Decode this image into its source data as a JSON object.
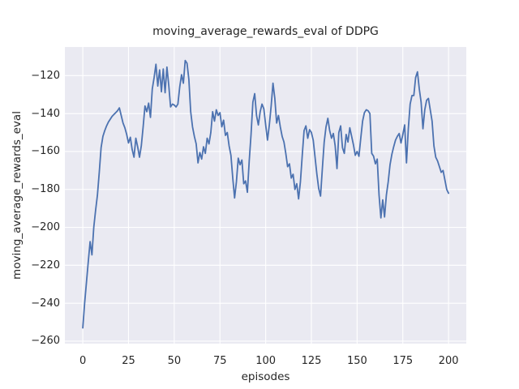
{
  "figure": {
    "background": "#ffffff",
    "plot_background": "#eaeaf2",
    "grid_color": "#ffffff",
    "text_color": "#262626",
    "line_color": "#4c72b0"
  },
  "chart_data": {
    "type": "line",
    "title": "moving_average_rewards_eval of DDPG",
    "xlabel": "episodes",
    "ylabel": "moving_average_rewards_eval",
    "legend": null,
    "grid": true,
    "xlim": [
      -9.8,
      209.7
    ],
    "ylim": [
      -261.3,
      -104.9
    ],
    "x_tick_values": [
      0,
      25,
      50,
      75,
      100,
      125,
      150,
      175,
      200
    ],
    "x_tick_labels": [
      "0",
      "25",
      "50",
      "75",
      "100",
      "125",
      "150",
      "175",
      "200"
    ],
    "y_tick_values": [
      -120,
      -140,
      -160,
      -180,
      -200,
      -220,
      -240,
      -260
    ],
    "y_tick_labels": [
      "−120",
      "−140",
      "−160",
      "−180",
      "−200",
      "−220",
      "−240",
      "−260"
    ],
    "series_name": "moving_average_rewards_eval",
    "x_start": 0,
    "x_step": 1,
    "values": [
      -253,
      -240,
      -229,
      -218,
      -207.5,
      -214.5,
      -200,
      -191,
      -183,
      -171,
      -158,
      -152,
      -149,
      -146.5,
      -144.5,
      -143,
      -141.5,
      -140.5,
      -139.5,
      -138.5,
      -137,
      -141,
      -145,
      -147.5,
      -151,
      -155.5,
      -152.5,
      -159,
      -163,
      -153,
      -157.5,
      -163,
      -157,
      -147,
      -136,
      -139,
      -134.5,
      -142,
      -127,
      -121,
      -114,
      -125.5,
      -117,
      -128.5,
      -116.5,
      -129,
      -115.5,
      -125,
      -136.5,
      -135,
      -135.5,
      -136.5,
      -135,
      -126,
      -119.5,
      -124,
      -112,
      -113.5,
      -122,
      -139,
      -147,
      -152,
      -156,
      -166,
      -160.5,
      -164,
      -157.5,
      -161,
      -153,
      -156,
      -150,
      -139,
      -144,
      -138,
      -141,
      -139.5,
      -147,
      -143.5,
      -151.5,
      -150,
      -157,
      -162,
      -174,
      -184.5,
      -176,
      -163.5,
      -167,
      -164.5,
      -177,
      -175.5,
      -181.5,
      -165,
      -151,
      -134,
      -129.5,
      -141,
      -146,
      -139,
      -135,
      -137.5,
      -146,
      -154,
      -146,
      -136,
      -124,
      -132,
      -145,
      -141,
      -147,
      -152,
      -155,
      -161,
      -168,
      -166.5,
      -174,
      -172,
      -180,
      -177,
      -185,
      -176,
      -162,
      -149,
      -146.5,
      -153,
      -148.5,
      -150,
      -154,
      -163,
      -172,
      -179.5,
      -183.5,
      -169,
      -155,
      -147,
      -142.5,
      -149,
      -153,
      -150.5,
      -157,
      -169,
      -150,
      -146.5,
      -158,
      -161,
      -151,
      -155,
      -147.5,
      -152,
      -156.5,
      -162,
      -160,
      -162.5,
      -153,
      -144,
      -139.5,
      -138,
      -138.5,
      -140,
      -161,
      -162.5,
      -166.5,
      -164,
      -183,
      -195,
      -185.5,
      -194.5,
      -183,
      -176,
      -167,
      -161.5,
      -157.5,
      -154,
      -152,
      -150.5,
      -155.5,
      -151,
      -146,
      -166,
      -148,
      -135,
      -130.5,
      -130.5,
      -121,
      -118,
      -127,
      -134,
      -148,
      -138,
      -133,
      -132,
      -138,
      -144,
      -157,
      -163,
      -165,
      -168,
      -171,
      -170,
      -175,
      -180,
      -182
    ]
  }
}
